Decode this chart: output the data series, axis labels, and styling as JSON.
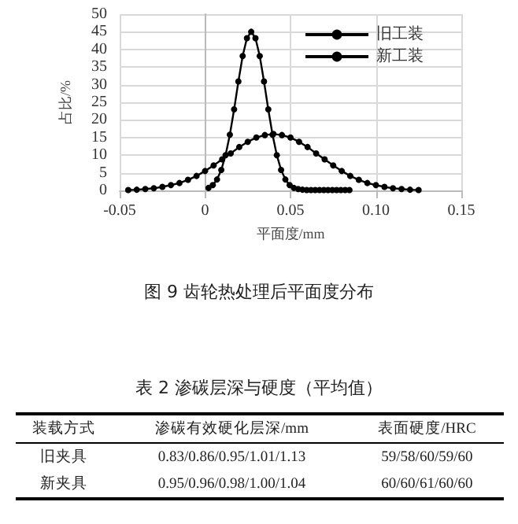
{
  "chart_data": [
    {
      "type": "line",
      "title": "图 9 齿轮热处理后平面度分布",
      "xlabel": "平面度/mm",
      "ylabel": "占比/%",
      "xlim": [
        -0.05,
        0.15
      ],
      "xticks": [
        -0.05,
        0,
        0.05,
        {
          "value": 0.1,
          "label": "0.10"
        },
        0.15
      ],
      "ylim": [
        0,
        50
      ],
      "yticks": [
        0,
        5,
        10,
        15,
        20,
        25,
        30,
        35,
        40,
        45,
        50
      ],
      "grid": true,
      "legend": "top right",
      "marker": "circle",
      "line_style": "solid",
      "series": [
        {
          "name": "旧工装",
          "color": "#000000",
          "x": [
            -0.045,
            -0.04,
            -0.035,
            -0.03,
            -0.025,
            -0.02,
            -0.015,
            -0.01,
            -0.005,
            0,
            0.005,
            0.01,
            0.015,
            0.02,
            0.025,
            0.03,
            0.035,
            0.04,
            0.045,
            0.05,
            0.055,
            0.06,
            0.065,
            0.07,
            0.075,
            0.08,
            0.085,
            0.09,
            0.095,
            0.1,
            0.105,
            0.11,
            0.115,
            0.12,
            0.125
          ],
          "values": [
            0.1,
            0.2,
            0.4,
            0.6,
            1.0,
            1.5,
            2.1,
            3.0,
            4.1,
            5.5,
            7.1,
            8.8,
            10.5,
            12.3,
            13.8,
            15.0,
            15.7,
            16.0,
            15.7,
            15.0,
            13.8,
            12.3,
            10.5,
            8.8,
            7.1,
            5.5,
            4.1,
            3.0,
            2.1,
            1.5,
            1.0,
            0.6,
            0.4,
            0.2,
            0.1
          ]
        },
        {
          "name": "新工装",
          "color": "#000000",
          "x": [
            0.002,
            0.0045,
            0.007,
            0.0095,
            0.012,
            0.0145,
            0.017,
            0.0195,
            0.022,
            0.0245,
            0.027,
            0.0295,
            0.032,
            0.0345,
            0.037,
            0.0395,
            0.042,
            0.0445,
            0.047,
            0.0495,
            0.052,
            0.0545,
            0.057,
            0.0595,
            0.062,
            0.0645,
            0.067,
            0.0695,
            0.072,
            0.0745,
            0.077,
            0.0795,
            0.082,
            0.0845
          ],
          "values": [
            0.7,
            1.5,
            3.1,
            5.8,
            10.0,
            15.8,
            23.0,
            30.9,
            38.1,
            43.2,
            45,
            43.2,
            38.1,
            30.9,
            23.0,
            15.8,
            10.0,
            5.8,
            3.1,
            1.5,
            0.7,
            0.4,
            0.2,
            0.1,
            0.1,
            0.1,
            0.1,
            0.1,
            0.1,
            0.1,
            0.1,
            0.1,
            0.1,
            0.1
          ]
        }
      ]
    },
    {
      "type": "other",
      "title": "表 2 渗碳层深与硬度（平均值）",
      "annotations": [
        "装载方式",
        "渗碳有效硬化层深/mm",
        "表面硬度/HRC",
        "旧夹具",
        "0.83/0.86/0.95/1.01/1.13",
        "59/58/60/59/60",
        "新夹具",
        "0.95/0.96/0.98/1.00/1.04",
        "60/60/61/60/60"
      ]
    }
  ]
}
